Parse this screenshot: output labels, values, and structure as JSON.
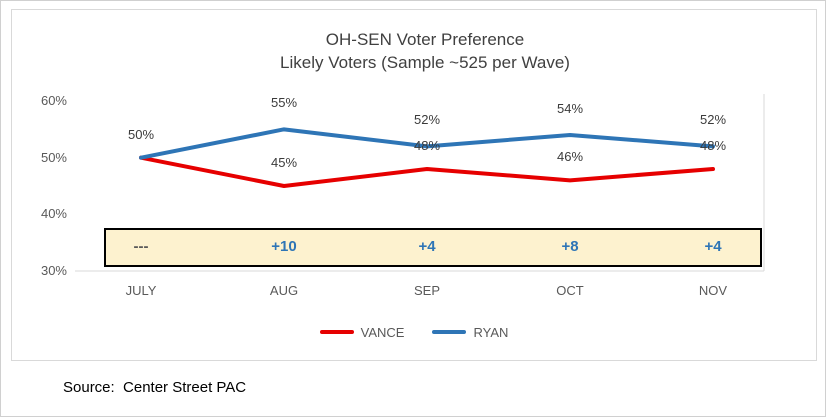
{
  "chart_data": {
    "type": "line",
    "title": "OH-SEN Voter Preference",
    "subtitle": "Likely Voters (Sample ~525 per Wave)",
    "categories": [
      "JULY",
      "AUG",
      "SEP",
      "OCT",
      "NOV"
    ],
    "series": [
      {
        "name": "VANCE",
        "color": "#e60000",
        "values": [
          50,
          45,
          48,
          46,
          48
        ],
        "labels": [
          "50%",
          "45%",
          "48%",
          "46%",
          "48%"
        ]
      },
      {
        "name": "RYAN",
        "color": "#2e75b6",
        "values": [
          50,
          55,
          52,
          54,
          52
        ],
        "labels": [
          "",
          "55%",
          "52%",
          "54%",
          "52%"
        ]
      }
    ],
    "margin_row": {
      "values": [
        "---",
        "+10",
        "+4",
        "+8",
        "+4"
      ],
      "colors": [
        "#595959",
        "#2e75b6",
        "#2e75b6",
        "#2e75b6",
        "#2e75b6"
      ],
      "box_fill": "#fdf2cf",
      "box_border": "#000000"
    },
    "yticks": [
      {
        "label": "60%",
        "value": 60
      },
      {
        "label": "50%",
        "value": 50
      },
      {
        "label": "40%",
        "value": 40
      },
      {
        "label": "30%",
        "value": 30
      }
    ],
    "ylim": [
      30,
      60
    ],
    "grid": false,
    "legend_position": "bottom"
  },
  "source": "Source:  Center Street PAC"
}
